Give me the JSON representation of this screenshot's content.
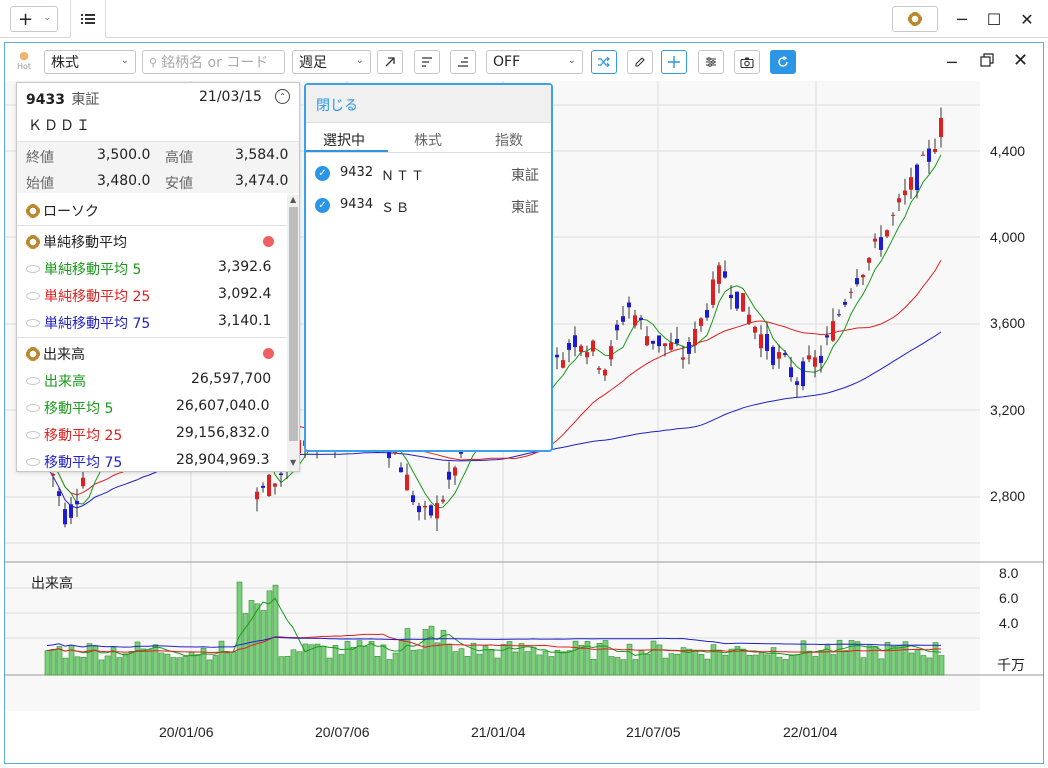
{
  "window": {
    "add_button": "+",
    "minimize": "─",
    "maximize": "☐",
    "close": "✕"
  },
  "toolbar": {
    "hot_label": "Hot",
    "market_select": "株式",
    "search_placeholder": "銘柄名 or コード",
    "period_select": "週足",
    "indicator_select": "OFF"
  },
  "price_axis": [
    "4,400",
    "4,000",
    "3,600",
    "3,200",
    "2,800"
  ],
  "volume_axis": [
    "8.0",
    "6.0",
    "4.0"
  ],
  "volume_unit": "千万",
  "volume_label": "出来高",
  "date_axis": [
    "20/01/06",
    "20/07/06",
    "21/01/04",
    "21/07/05",
    "22/01/04"
  ],
  "info_panel": {
    "code": "9433",
    "exchange": "東証",
    "date": "21/03/15",
    "name": "ＫＤＤＩ",
    "close_label": "終値",
    "close": "3,500.0",
    "high_label": "高値",
    "high": "3,584.0",
    "open_label": "始値",
    "open": "3,480.0",
    "low_label": "安値",
    "low": "3,474.0",
    "candle_section": "ローソク",
    "sma_section": "単純移動平均",
    "sma5_label": "単純移動平均 5",
    "sma5": "3,392.6",
    "sma25_label": "単純移動平均 25",
    "sma25": "3,092.4",
    "sma75_label": "単純移動平均 75",
    "sma75": "3,140.1",
    "vol_section": "出来高",
    "vol_label": "出来高",
    "vol": "26,597,700",
    "vma5_label": "移動平均 5",
    "vma5": "26,607,040.0",
    "vma25_label": "移動平均 25",
    "vma25": "29,156,832.0",
    "vma75_label": "移動平均 75",
    "vma75": "28,904,969.3"
  },
  "compare_panel": {
    "close_label": "閉じる",
    "tabs": [
      "選択中",
      "株式",
      "指数"
    ],
    "items": [
      {
        "code": "9432",
        "name": "ＮＴＴ",
        "exchange": "東証"
      },
      {
        "code": "9434",
        "name": "ＳＢ",
        "exchange": "東証"
      }
    ]
  },
  "colors": {
    "up": "#e02020",
    "down": "#1a1ad8",
    "sma5": "#1a9a1a",
    "sma25": "#e02020",
    "sma75": "#2020c8",
    "volume_bar": "#7ad07a",
    "accent": "#2c95e6"
  }
}
